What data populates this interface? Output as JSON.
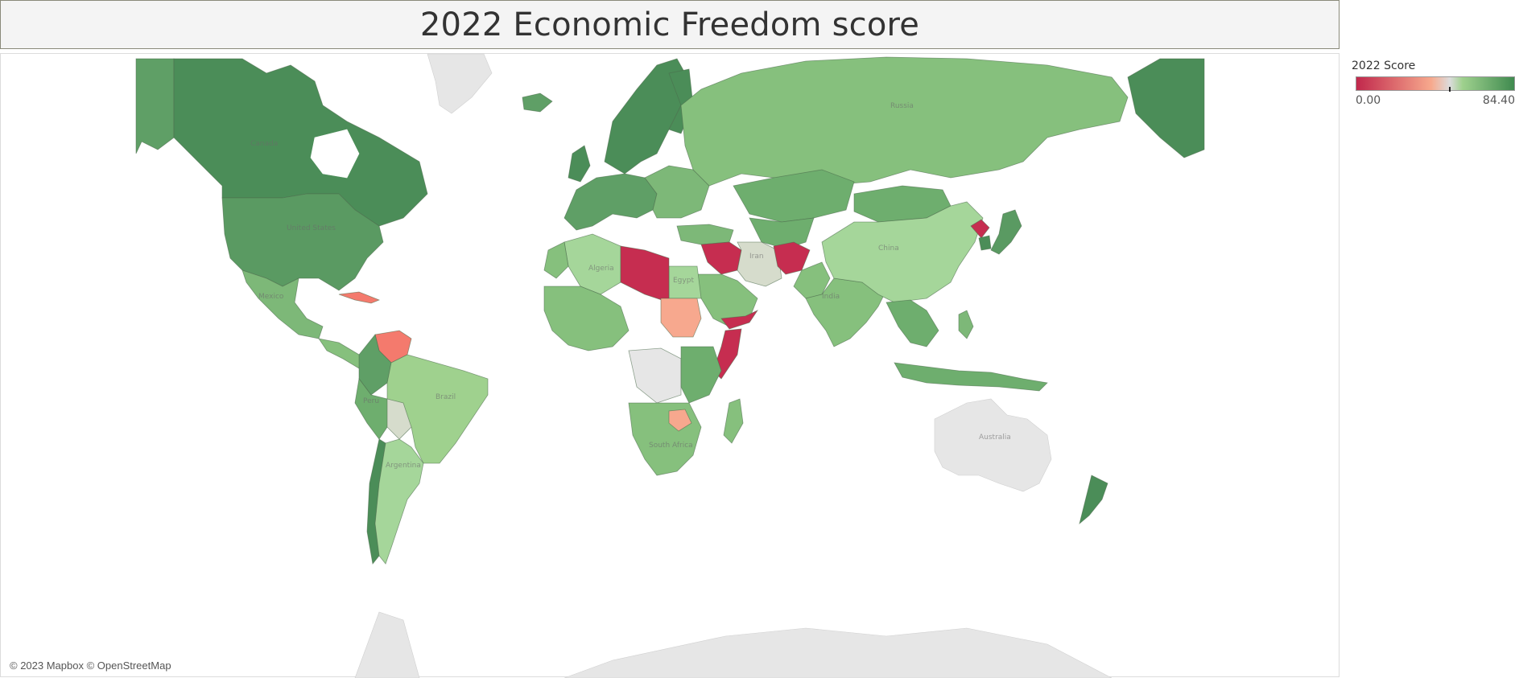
{
  "title": "2022 Economic Freedom score",
  "legend": {
    "title": "2022 Score",
    "min_label": "0.00",
    "max_label": "84.40",
    "min": 0.0,
    "max": 84.4,
    "midpoint": 50.0,
    "colors": {
      "low": "#c1284c",
      "mid_low": "#f7a98d",
      "mid": "#dcdcdc",
      "mid_high": "#9fd18e",
      "high": "#3f8a4f"
    }
  },
  "attribution": "© 2023 Mapbox © OpenStreetMap",
  "colors": {
    "score_0": "#c62d50",
    "score_low_mid": "#f7a88e",
    "score_low": "#f47a6d",
    "score_neutral": "#d6dccc",
    "score_light_green": "#a5d69a",
    "score_green": "#86c07d",
    "score_mid_green": "#6eae6e",
    "score_dark_green": "#4b8d58",
    "no_data": "#e6e6e6"
  },
  "map_labels": [
    "Canada",
    "United States",
    "Russia",
    "China",
    "India",
    "Brazil",
    "Algeria",
    "Iran",
    "Argentina",
    "Australia",
    "Mexico",
    "Peru",
    "Egypt",
    "South Africa"
  ]
}
